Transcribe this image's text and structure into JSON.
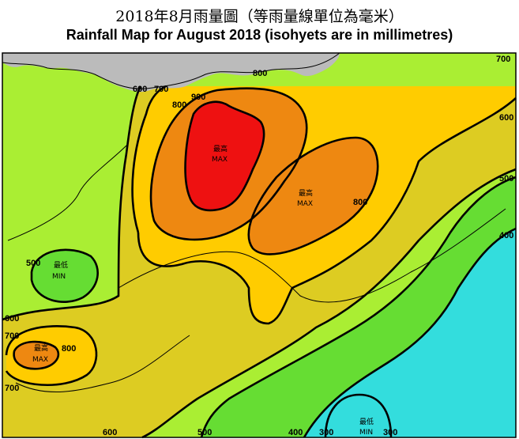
{
  "title_zh": "2018年8月雨量圖（等雨量線單位為毫米）",
  "title_en": "Rainfall Map for August 2018 (isohyets are in millimetres)",
  "colors": {
    "lt400": "#33dddd",
    "r400_500": "#66dd33",
    "r500_600": "#aaee33",
    "r600_700": "#ddcc22",
    "r700_800": "#ffcc00",
    "r800_900": "#ee8811",
    "gt900": "#ee1111",
    "land_outside": "#bbbbbb"
  },
  "isohyet_labels": {
    "l600_top": "600",
    "l700_top": "700",
    "l800_top": "800",
    "l900_top": "900",
    "l800_topmid": "800",
    "l700_right": "700",
    "l600_right": "600",
    "l500_right": "500",
    "l400_right": "400",
    "l800_mid": "800",
    "l500_left": "500",
    "l600_left": "600",
    "l700_left": "700",
    "l800_left": "800",
    "l700_left_bottom": "700",
    "l600_bottom": "600",
    "l500_bottom": "500",
    "l400_bottom": "400",
    "l300_bottom_a": "300",
    "l300_bottom_b": "300"
  },
  "extrema": {
    "max_north_zh": "最高",
    "max_north_en": "MAX",
    "max_east_zh": "最高",
    "max_east_en": "MAX",
    "min_west_zh": "最低",
    "min_west_en": "MIN",
    "max_sw_zh": "最高",
    "max_sw_en": "MAX",
    "min_south_zh": "最低",
    "min_south_en": "MIN"
  }
}
